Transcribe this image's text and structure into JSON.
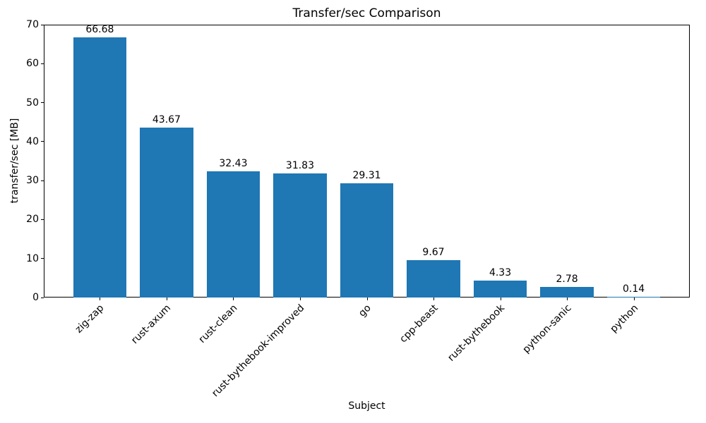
{
  "chart_data": {
    "type": "bar",
    "title": "Transfer/sec Comparison",
    "xlabel": "Subject",
    "ylabel": "transfer/sec [MB]",
    "categories": [
      "zig-zap",
      "rust-axum",
      "rust-clean",
      "rust-bythebook-improved",
      "go",
      "cpp-beast",
      "rust-bythebook",
      "python-sanic",
      "python"
    ],
    "values": [
      66.68,
      43.67,
      32.43,
      31.83,
      29.31,
      9.67,
      4.33,
      2.78,
      0.14
    ],
    "value_labels": [
      "66.68",
      "43.67",
      "32.43",
      "31.83",
      "29.31",
      "9.67",
      "4.33",
      "2.78",
      "0.14"
    ],
    "ylim": [
      0,
      70
    ],
    "yticks": [
      0,
      10,
      20,
      30,
      40,
      50,
      60,
      70
    ],
    "bar_color": "#1f77b4",
    "axis_color": "#000000",
    "grid": false,
    "legend": null,
    "xtick_rotation_deg": 45
  }
}
